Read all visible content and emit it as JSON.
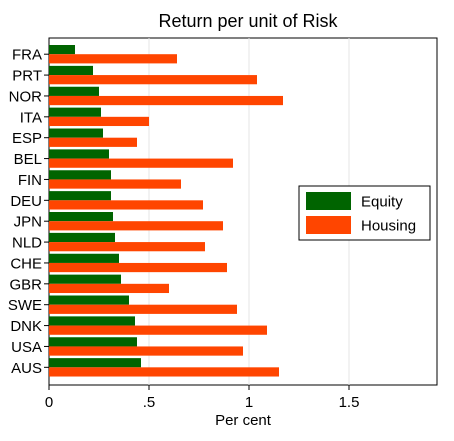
{
  "chart_data": {
    "type": "bar",
    "orientation": "horizontal",
    "title": "Return per unit of Risk",
    "xlabel": "Per cent",
    "ylabel": "",
    "xlim": [
      0,
      1.5
    ],
    "x_ticks": [
      0,
      0.5,
      1,
      1.5
    ],
    "x_tick_labels": [
      "0",
      ".5",
      "1",
      "1.5"
    ],
    "grid": "vertical lines at .5, 1, 1.5",
    "legend_position": "right-middle",
    "categories": [
      "FRA",
      "PRT",
      "NOR",
      "ITA",
      "ESP",
      "BEL",
      "FIN",
      "DEU",
      "JPN",
      "NLD",
      "CHE",
      "GBR",
      "SWE",
      "DNK",
      "USA",
      "AUS"
    ],
    "series": [
      {
        "name": "Equity",
        "color": "#006400",
        "values": [
          0.13,
          0.22,
          0.25,
          0.26,
          0.27,
          0.3,
          0.31,
          0.31,
          0.32,
          0.33,
          0.35,
          0.36,
          0.4,
          0.43,
          0.44,
          0.46
        ]
      },
      {
        "name": "Housing",
        "color": "#ff4500",
        "values": [
          0.64,
          1.04,
          1.17,
          0.5,
          0.44,
          0.92,
          0.66,
          0.77,
          0.87,
          0.78,
          0.89,
          0.6,
          0.94,
          1.09,
          0.97,
          1.15
        ]
      }
    ]
  }
}
